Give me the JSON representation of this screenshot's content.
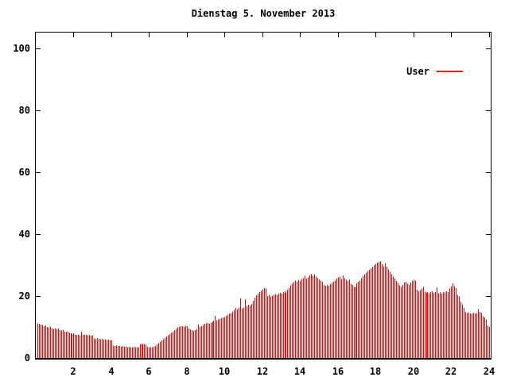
{
  "chart_data": {
    "type": "bar",
    "style": "impulses",
    "title": "Dienstag 5. November 2013",
    "xlabel": "",
    "ylabel": "",
    "x_unit": "hour of day",
    "interval_minutes": 5,
    "first_point_time": "00:05",
    "last_point_time": "24:00",
    "xlim": [
      0,
      24.1
    ],
    "ylim": [
      0,
      105
    ],
    "xticks": [
      2,
      4,
      6,
      8,
      10,
      12,
      14,
      16,
      18,
      20,
      22,
      24
    ],
    "yticks": [
      0,
      20,
      40,
      60,
      80,
      100
    ],
    "xticklabels": [
      "2",
      "4",
      "6",
      "8",
      "10",
      "12",
      "14",
      "16",
      "18",
      "20",
      "22",
      "24"
    ],
    "yticklabels": [
      "0",
      "20",
      "40",
      "60",
      "80",
      "100"
    ],
    "grid": false,
    "legend_position": "top-right-inside",
    "series": [
      {
        "name": "User",
        "color": "#ff0000",
        "values": [
          11.2,
          11.0,
          10.8,
          10.6,
          10.3,
          10.5,
          10.0,
          9.8,
          10.1,
          9.6,
          9.4,
          9.6,
          9.3,
          9.5,
          9.0,
          8.8,
          9.1,
          8.6,
          8.4,
          8.6,
          8.2,
          8.0,
          7.8,
          8.0,
          7.6,
          7.4,
          7.6,
          7.3,
          8.5,
          7.6,
          7.4,
          7.5,
          7.3,
          7.4,
          7.2,
          7.3,
          6.3,
          6.2,
          6.4,
          6.2,
          6.0,
          6.1,
          5.9,
          6.0,
          5.8,
          5.9,
          5.7,
          5.8,
          4.0,
          3.9,
          4.1,
          3.8,
          3.9,
          3.7,
          3.8,
          3.6,
          3.7,
          3.5,
          3.6,
          3.5,
          3.5,
          3.6,
          3.4,
          3.5,
          3.4,
          4.5,
          4.6,
          4.4,
          4.5,
          4.3,
          3.6,
          3.5,
          3.5,
          3.4,
          3.6,
          3.9,
          4.3,
          4.8,
          5.2,
          5.6,
          6.0,
          6.4,
          6.9,
          7.3,
          7.7,
          8.1,
          8.5,
          9.0,
          9.4,
          9.8,
          10.0,
          10.2,
          10.3,
          10.1,
          10.4,
          10.2,
          9.5,
          9.2,
          8.9,
          8.7,
          9.0,
          9.4,
          10.9,
          10.0,
          10.3,
          10.6,
          11.0,
          11.2,
          11.3,
          11.0,
          11.4,
          11.6,
          12.0,
          13.6,
          12.2,
          12.4,
          12.7,
          12.9,
          13.0,
          13.2,
          13.6,
          14.0,
          14.3,
          14.5,
          15.0,
          15.5,
          16.1,
          15.8,
          16.2,
          19.3,
          16.0,
          16.3,
          19.0,
          16.8,
          17.2,
          16.9,
          17.4,
          18.4,
          19.5,
          20.2,
          20.8,
          21.3,
          21.7,
          22.1,
          22.5,
          22.4,
          20.0,
          20.3,
          19.8,
          20.1,
          20.4,
          20.6,
          20.3,
          20.8,
          21.0,
          20.7,
          21.2,
          21.5,
          21.0,
          22.0,
          22.6,
          23.4,
          24.0,
          24.5,
          25.0,
          24.6,
          25.2,
          24.8,
          25.5,
          25.8,
          26.5,
          25.6,
          26.0,
          26.8,
          27.2,
          26.5,
          27.0,
          26.3,
          25.9,
          25.3,
          25.0,
          24.6,
          23.5,
          23.2,
          23.6,
          23.3,
          23.8,
          24.2,
          24.6,
          25.0,
          25.6,
          26.0,
          26.2,
          25.5,
          26.6,
          25.8,
          25.2,
          24.8,
          25.4,
          23.9,
          23.5,
          23.0,
          22.9,
          24.2,
          24.6,
          25.0,
          25.8,
          26.4,
          27.0,
          27.5,
          28.0,
          28.4,
          28.9,
          29.4,
          29.9,
          30.3,
          30.7,
          31.0,
          31.2,
          30.4,
          29.6,
          30.6,
          29.4,
          28.6,
          27.8,
          27.0,
          26.2,
          25.6,
          24.8,
          24.2,
          23.4,
          22.9,
          23.5,
          24.3,
          24.6,
          24.0,
          23.6,
          24.3,
          24.8,
          25.2,
          25.0,
          22.0,
          21.5,
          21.9,
          22.4,
          22.9,
          21.4,
          21.0,
          21.3,
          20.9,
          21.2,
          21.5,
          21.0,
          21.2,
          22.8,
          20.9,
          21.1,
          20.8,
          21.3,
          21.1,
          21.5,
          21.3,
          22.4,
          23.0,
          24.1,
          23.2,
          22.5,
          20.4,
          19.9,
          18.2,
          17.3,
          16.1,
          14.9,
          14.5,
          14.7,
          14.4,
          14.4,
          14.6,
          14.3,
          14.5,
          15.7,
          14.8,
          14.6,
          13.5,
          13.1,
          12.4,
          10.4,
          10.0
        ]
      }
    ],
    "colors": {
      "series_red": "#ff0000",
      "axis_black": "#000000",
      "background": "#ffffff"
    }
  }
}
